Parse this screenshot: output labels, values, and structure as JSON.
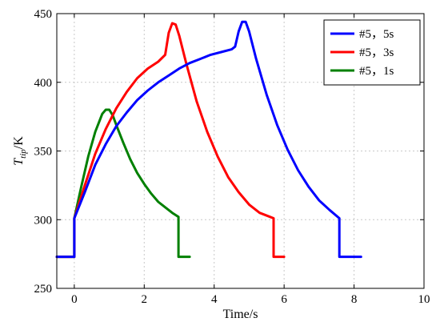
{
  "chart_data": {
    "type": "line",
    "xlabel": "Time/s",
    "ylabel_base": "T",
    "ylabel_sub": "tip",
    "ylabel_unit": "/K",
    "xlim": [
      -0.5,
      10
    ],
    "ylim": [
      250,
      450
    ],
    "xticks": [
      0,
      2,
      4,
      6,
      8,
      10
    ],
    "yticks": [
      250,
      300,
      350,
      400,
      450
    ],
    "grid": true,
    "legend_position": "top-right",
    "series": [
      {
        "name": "#5，5s",
        "color": "#0000ff",
        "x": [
          -0.5,
          0.0,
          0.0,
          0.3,
          0.6,
          0.9,
          1.2,
          1.5,
          1.8,
          2.1,
          2.4,
          2.7,
          3.0,
          3.3,
          3.6,
          3.9,
          4.2,
          4.5,
          4.6,
          4.7,
          4.8,
          4.9,
          5.0,
          5.2,
          5.5,
          5.8,
          6.1,
          6.4,
          6.7,
          7.0,
          7.3,
          7.58,
          7.58,
          8.2
        ],
        "y": [
          273,
          273,
          301,
          320,
          340,
          355,
          368,
          378,
          387,
          394,
          400,
          405,
          410,
          414,
          417,
          420,
          422,
          424,
          426,
          437,
          444,
          444,
          437,
          417,
          391,
          369,
          351,
          336,
          324,
          314,
          307,
          301,
          273,
          273
        ]
      },
      {
        "name": "#5，3s",
        "color": "#ff0000",
        "x": [
          -0.5,
          0.0,
          0.0,
          0.3,
          0.6,
          0.9,
          1.2,
          1.5,
          1.8,
          2.1,
          2.4,
          2.6,
          2.7,
          2.8,
          2.9,
          3.0,
          3.2,
          3.5,
          3.8,
          4.1,
          4.4,
          4.7,
          5.0,
          5.3,
          5.6,
          5.7,
          5.7,
          6.0
        ],
        "y": [
          273,
          273,
          301,
          325,
          348,
          366,
          381,
          393,
          403,
          410,
          415,
          420,
          436,
          443,
          442,
          434,
          414,
          386,
          364,
          346,
          331,
          320,
          311,
          305,
          302,
          301,
          273,
          273
        ]
      },
      {
        "name": "#5，1s",
        "color": "#008000",
        "x": [
          -0.5,
          0.0,
          0.0,
          0.2,
          0.4,
          0.6,
          0.8,
          0.9,
          1.0,
          1.1,
          1.2,
          1.4,
          1.6,
          1.8,
          2.0,
          2.2,
          2.4,
          2.6,
          2.8,
          2.98,
          2.98,
          3.3
        ],
        "y": [
          273,
          273,
          301,
          324,
          346,
          364,
          377,
          380,
          380,
          376,
          369,
          356,
          344,
          334,
          326,
          319,
          313,
          309,
          305,
          302,
          273,
          273
        ]
      }
    ]
  }
}
